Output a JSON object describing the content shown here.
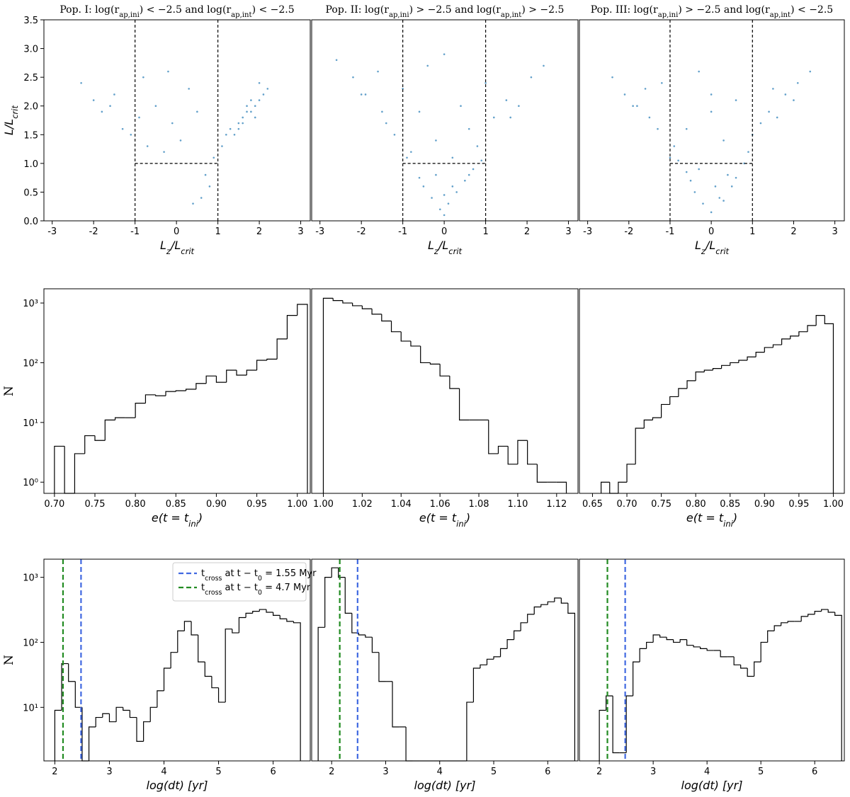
{
  "chart_data": [
    {
      "type": "scatter",
      "title": "Pop. I: log(r_{ap,ini}) < −2.5 and log(r_{ap,int}) < −2.5",
      "x_label": "L_{z}/L_{crit}",
      "y_label": "L/L_{crit}",
      "color": "#1f77b4",
      "x": [
        -2.3,
        -2.0,
        -1.8,
        -1.5,
        -1.3,
        -1.1,
        -0.9,
        -0.7,
        -0.5,
        -0.3,
        -0.1,
        0.1,
        0.3,
        0.5,
        0.7,
        0.9,
        1.1,
        1.2,
        1.3,
        1.4,
        1.5,
        1.6,
        1.7,
        1.8,
        1.9,
        2.0,
        2.1,
        2.2,
        1.5,
        1.7,
        1.9,
        1.6,
        1.8,
        2.0,
        0.6,
        0.8,
        -0.2,
        0.4,
        -1.6,
        -0.8
      ],
      "values": [
        2.4,
        2.1,
        1.9,
        2.2,
        1.6,
        1.5,
        1.8,
        1.3,
        2.0,
        1.2,
        1.7,
        1.4,
        2.3,
        1.9,
        0.8,
        1.1,
        1.3,
        1.5,
        1.6,
        1.5,
        1.7,
        1.8,
        1.9,
        1.9,
        2.0,
        2.1,
        2.2,
        2.3,
        1.6,
        2.0,
        1.8,
        1.7,
        2.1,
        2.4,
        0.4,
        0.6,
        2.6,
        0.3,
        2.0,
        2.5
      ],
      "ref_x": [
        -1,
        1
      ],
      "ref_y": 1,
      "xlim": [
        -3.2,
        3.23
      ],
      "ylim": [
        0,
        3.5
      ],
      "xticks": [
        -3,
        -2,
        -1,
        0,
        1,
        2,
        3
      ],
      "yticks": [
        {
          "value": 0,
          "label": "0.0"
        },
        0.5,
        {
          "value": 1,
          "label": "1.0"
        },
        1.5,
        {
          "value": 2,
          "label": "2.0"
        },
        2.5,
        {
          "value": 3,
          "label": "3.0"
        },
        3.5
      ]
    },
    {
      "type": "scatter",
      "title": "Pop. II: log(r_{ap,ini}) > −2.5 and log(r_{ap,int}) > −2.5",
      "x_label": "L_{z}/L_{crit}",
      "color": "#1f77b4",
      "x": [
        -2.6,
        -2.2,
        -1.9,
        -1.6,
        -1.4,
        -1.2,
        -1.0,
        -0.8,
        -0.6,
        -0.4,
        -0.2,
        0,
        0.2,
        0.4,
        0.6,
        0.8,
        1.0,
        1.2,
        1.5,
        1.8,
        2.1,
        2.4,
        -0.5,
        -0.3,
        -0.1,
        0.1,
        0.3,
        0.5,
        -0.2,
        0,
        0.2,
        0.6,
        -0.6,
        0.7,
        -1.5,
        1.6,
        -0.9,
        0.9,
        0,
        -2.0
      ],
      "values": [
        2.8,
        2.5,
        2.2,
        2.6,
        1.7,
        1.5,
        2.3,
        1.2,
        1.9,
        2.7,
        1.4,
        2.9,
        1.1,
        2.0,
        1.6,
        1.3,
        2.4,
        1.8,
        2.1,
        2.0,
        2.5,
        2.7,
        0.6,
        0.4,
        0.2,
        0.3,
        0.5,
        0.7,
        0.8,
        0.1,
        0.6,
        0.8,
        0.75,
        0.9,
        1.9,
        1.8,
        1.1,
        1.05,
        0.45,
        2.2
      ],
      "ref_x": [
        -1,
        1
      ],
      "ref_y": 1,
      "xlim": [
        -3.2,
        3.23
      ],
      "ylim": [
        0,
        3.5
      ],
      "xticks": [
        -3,
        -2,
        -1,
        0,
        1,
        2,
        3
      ]
    },
    {
      "type": "scatter",
      "title": "Pop. III: log(r_{ap,ini}) > −2.5 and log(r_{ap,int}) < −2.5",
      "x_label": "L_{z}/L_{crit}",
      "color": "#1f77b4",
      "x": [
        -2.4,
        -2.1,
        -1.8,
        -1.5,
        -1.2,
        -0.9,
        -0.6,
        -0.3,
        0,
        0.3,
        0.6,
        0.9,
        1.2,
        1.5,
        1.8,
        2.1,
        2.4,
        -1.0,
        1.0,
        -0.5,
        0.5,
        -0.4,
        -0.2,
        0,
        0.2,
        0.4,
        -0.3,
        0.1,
        0.3,
        -0.6,
        0.6,
        -1.3,
        1.4,
        -1.9,
        2.0,
        0.8,
        -0.8,
        0,
        1.6,
        -1.6
      ],
      "values": [
        2.5,
        2.2,
        2.0,
        1.8,
        2.4,
        1.3,
        1.6,
        2.6,
        1.9,
        1.4,
        2.1,
        1.2,
        1.7,
        2.3,
        2.2,
        2.4,
        2.6,
        1.1,
        1.5,
        0.7,
        0.6,
        0.5,
        0.3,
        0.15,
        0.4,
        0.8,
        0.9,
        0.6,
        0.35,
        0.85,
        0.75,
        1.6,
        1.9,
        2.0,
        2.1,
        1.0,
        1.05,
        2.2,
        1.8,
        2.3
      ],
      "ref_x": [
        -1,
        1
      ],
      "ref_y": 1,
      "xlim": [
        -3.2,
        3.23
      ],
      "ylim": [
        0,
        3.5
      ],
      "xticks": [
        -3,
        -2,
        -1,
        0,
        1,
        2,
        3
      ]
    },
    {
      "type": "histogram",
      "x_label": "e(t = t_{ini})",
      "y_label": "N",
      "color": "#000000",
      "log_y": true,
      "bins": [
        0.7,
        0.7125,
        0.725,
        0.7375,
        0.75,
        0.7625,
        0.775,
        0.7875,
        0.8,
        0.8125,
        0.825,
        0.8375,
        0.85,
        0.8625,
        0.875,
        0.8875,
        0.9,
        0.9125,
        0.925,
        0.9375,
        0.95,
        0.9625,
        0.975,
        0.9875,
        1.0,
        1.0125
      ],
      "values": [
        4,
        0,
        3,
        6,
        5,
        11,
        12,
        12,
        21,
        29,
        28,
        33,
        34,
        36,
        45,
        60,
        47,
        75,
        62,
        75,
        110,
        115,
        250,
        620,
        950
      ],
      "xlim": [
        0.687,
        1.016
      ],
      "ylim": [
        0.65,
        1730
      ],
      "xticks": [
        {
          "value": 0.7,
          "label": "0.70"
        },
        0.75,
        {
          "value": 0.8,
          "label": "0.80"
        },
        0.85,
        {
          "value": 0.9,
          "label": "0.90"
        },
        0.95,
        {
          "value": 1,
          "label": "1.00"
        }
      ],
      "yticks": [
        {
          "value": 1,
          "label": "10⁰"
        },
        {
          "value": 10,
          "label": "10¹"
        },
        {
          "value": 100,
          "label": "10²"
        },
        {
          "value": 1000,
          "label": "10³"
        }
      ]
    },
    {
      "type": "histogram",
      "x_label": "e(t = t_{ini})",
      "color": "#000000",
      "log_y": true,
      "bins": [
        1,
        1.005,
        1.01,
        1.015,
        1.02,
        1.025,
        1.03,
        1.035,
        1.04,
        1.045,
        1.05,
        1.055,
        1.06,
        1.065,
        1.07,
        1.075,
        1.08,
        1.085,
        1.09,
        1.095,
        1.1,
        1.105,
        1.11,
        1.115,
        1.12,
        1.125
      ],
      "values": [
        1200,
        1100,
        1000,
        900,
        800,
        650,
        500,
        330,
        230,
        190,
        100,
        95,
        60,
        37,
        11,
        11,
        11,
        3,
        4,
        2,
        5,
        2,
        1,
        1,
        1
      ],
      "xlim": [
        0.994,
        1.131
      ],
      "ylim": [
        0.65,
        1730
      ],
      "xticks": [
        {
          "value": 1,
          "label": "1.00"
        },
        {
          "value": 1.02,
          "label": "1.02"
        },
        {
          "value": 1.04,
          "label": "1.04"
        },
        {
          "value": 1.06,
          "label": "1.06"
        },
        {
          "value": 1.08,
          "label": "1.08"
        },
        {
          "value": 1.1,
          "label": "1.10"
        },
        {
          "value": 1.12,
          "label": "1.12"
        }
      ]
    },
    {
      "type": "histogram",
      "x_label": "e(t = t_{ini})",
      "color": "#000000",
      "log_y": true,
      "bins": [
        0.6625,
        0.675,
        0.6875,
        0.7,
        0.7125,
        0.725,
        0.7375,
        0.75,
        0.7625,
        0.775,
        0.7875,
        0.8,
        0.8125,
        0.825,
        0.8375,
        0.85,
        0.8625,
        0.875,
        0.8875,
        0.9,
        0.9125,
        0.925,
        0.9375,
        0.95,
        0.9625,
        0.975,
        0.9875,
        1.0
      ],
      "values": [
        1,
        0,
        1,
        2,
        8,
        11,
        12,
        20,
        27,
        37,
        50,
        70,
        75,
        80,
        90,
        100,
        110,
        125,
        150,
        180,
        200,
        250,
        280,
        330,
        420,
        620,
        450
      ],
      "xlim": [
        0.631,
        1.016
      ],
      "ylim": [
        0.65,
        1730
      ],
      "xticks": [
        0.65,
        {
          "value": 0.7,
          "label": "0.70"
        },
        0.75,
        {
          "value": 0.8,
          "label": "0.80"
        },
        0.85,
        {
          "value": 0.9,
          "label": "0.90"
        },
        0.95,
        {
          "value": 1,
          "label": "1.00"
        }
      ]
    },
    {
      "type": "histogram",
      "x_label": "log(dt) [yr]",
      "y_label": "N",
      "color": "#000000",
      "log_y": true,
      "bins": [
        2,
        2.125,
        2.25,
        2.375,
        2.5,
        2.625,
        2.75,
        2.875,
        3,
        3.125,
        3.25,
        3.375,
        3.5,
        3.625,
        3.75,
        3.875,
        4,
        4.125,
        4.25,
        4.375,
        4.5,
        4.625,
        4.75,
        4.875,
        5,
        5.125,
        5.25,
        5.375,
        5.5,
        5.625,
        5.75,
        5.875,
        6,
        6.125,
        6.25,
        6.375,
        6.5
      ],
      "values": [
        9,
        47,
        25,
        10,
        0,
        5,
        7,
        8,
        6,
        10,
        9,
        7,
        3,
        6,
        10,
        18,
        40,
        70,
        150,
        210,
        130,
        50,
        30,
        20,
        12,
        160,
        140,
        240,
        280,
        300,
        320,
        290,
        260,
        230,
        210,
        200
      ],
      "lines": [
        {
          "name": "t_{cross} at t − t_{0} = 1.55 Myr",
          "color": "#4169e1",
          "x": 2.48
        },
        {
          "name": "t_{cross} at t − t_{0} = 4.7 Myr",
          "color": "#228b22",
          "x": 2.15
        }
      ],
      "legend": "upper right",
      "xlim": [
        1.8,
        6.68
      ],
      "ylim": [
        1.5,
        1900
      ],
      "xticks": [
        2,
        3,
        4,
        5,
        6
      ],
      "yticks": [
        {
          "value": 10,
          "label": "10¹"
        },
        {
          "value": 100,
          "label": "10²"
        },
        {
          "value": 1000,
          "label": "10³"
        }
      ]
    },
    {
      "type": "histogram",
      "x_label": "log(dt) [yr]",
      "color": "#000000",
      "log_y": true,
      "bins": [
        1.75,
        1.875,
        2,
        2.125,
        2.25,
        2.375,
        2.5,
        2.625,
        2.75,
        2.875,
        3,
        3.125,
        3.25,
        3.375,
        3.5,
        3.625,
        3.75,
        3.875,
        4,
        4.125,
        4.25,
        4.375,
        4.5,
        4.625,
        4.75,
        4.875,
        5,
        5.125,
        5.25,
        5.375,
        5.5,
        5.625,
        5.75,
        5.875,
        6,
        6.125,
        6.25,
        6.375,
        6.5
      ],
      "values": [
        170,
        1000,
        1400,
        1000,
        280,
        140,
        130,
        120,
        70,
        25,
        25,
        5,
        5,
        0,
        0,
        0,
        0,
        0,
        0,
        0,
        0,
        0,
        12,
        40,
        45,
        55,
        60,
        80,
        110,
        150,
        200,
        270,
        350,
        380,
        420,
        480,
        400,
        280
      ],
      "lines": [
        {
          "color": "#4169e1",
          "x": 2.48
        },
        {
          "color": "#228b22",
          "x": 2.15
        }
      ],
      "xlim": [
        1.63,
        6.56
      ],
      "ylim": [
        1.5,
        1900
      ],
      "xticks": [
        2,
        3,
        4,
        5,
        6
      ]
    },
    {
      "type": "histogram",
      "x_label": "log(dt) [yr]",
      "color": "#000000",
      "log_y": true,
      "bins": [
        2,
        2.125,
        2.25,
        2.375,
        2.5,
        2.625,
        2.75,
        2.875,
        3,
        3.125,
        3.25,
        3.375,
        3.5,
        3.625,
        3.75,
        3.875,
        4,
        4.125,
        4.25,
        4.375,
        4.5,
        4.625,
        4.75,
        4.875,
        5,
        5.125,
        5.25,
        5.375,
        5.5,
        5.625,
        5.75,
        5.875,
        6,
        6.125,
        6.25,
        6.375,
        6.5
      ],
      "values": [
        9,
        15,
        2,
        2,
        15,
        50,
        80,
        100,
        130,
        120,
        110,
        100,
        110,
        90,
        85,
        80,
        75,
        75,
        60,
        60,
        45,
        40,
        30,
        50,
        100,
        150,
        180,
        200,
        210,
        210,
        250,
        270,
        300,
        320,
        290,
        260
      ],
      "lines": [
        {
          "color": "#4169e1",
          "x": 2.48
        },
        {
          "color": "#228b22",
          "x": 2.15
        }
      ],
      "xlim": [
        1.63,
        6.55
      ],
      "ylim": [
        1.5,
        1900
      ],
      "xticks": [
        2,
        3,
        4,
        5,
        6
      ]
    }
  ]
}
